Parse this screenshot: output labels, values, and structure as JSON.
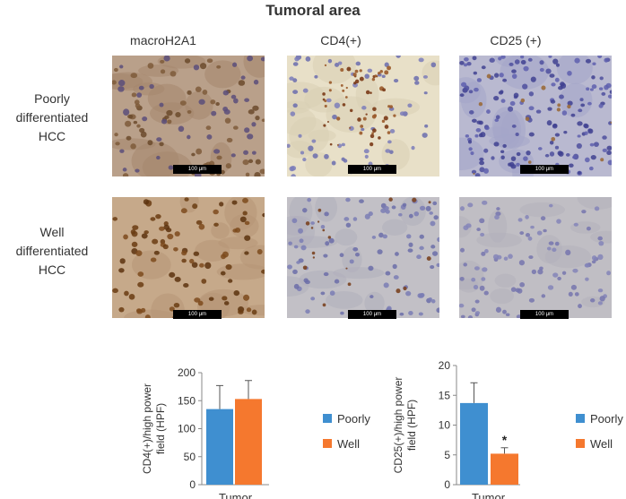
{
  "figure": {
    "title": "Tumoral area",
    "columns": [
      "macroH2A1",
      "CD4(+)",
      "CD25 (+)"
    ],
    "rows": [
      {
        "lines": [
          "Poorly",
          "differentiated",
          "HCC"
        ]
      },
      {
        "lines": [
          "Well",
          "differentiated",
          "HCC"
        ]
      }
    ],
    "scale_bar_label": "100 μm",
    "colors": {
      "hematoxylin": "#5a5aa8",
      "dab_brown": "#7a4a1e",
      "poorly": "#3f8fd0",
      "well": "#f5782e"
    }
  },
  "chart_data": [
    {
      "type": "bar",
      "categories": [
        "Tumor"
      ],
      "xlabel": "Tumor",
      "ylabel": "CD4(+)/high power field (HPF)",
      "ylim": [
        0,
        200
      ],
      "yticks": [
        0,
        50,
        100,
        150,
        200
      ],
      "series": [
        {
          "name": "Poorly",
          "values": [
            135
          ],
          "error": [
            42
          ],
          "color": "#3f8fd0"
        },
        {
          "name": "Well",
          "values": [
            153
          ],
          "error": [
            33
          ],
          "color": "#f5782e"
        }
      ],
      "annotations": [],
      "legend": "right"
    },
    {
      "type": "bar",
      "categories": [
        "Tumor"
      ],
      "xlabel": "Tumor",
      "ylabel": "CD25(+)/high power field (HPF)",
      "ylim": [
        0,
        20
      ],
      "yticks": [
        0,
        5,
        10,
        15,
        20
      ],
      "series": [
        {
          "name": "Poorly",
          "values": [
            13.7
          ],
          "error": [
            3.4
          ],
          "color": "#3f8fd0"
        },
        {
          "name": "Well",
          "values": [
            5.2
          ],
          "error": [
            1.0
          ],
          "color": "#f5782e"
        }
      ],
      "annotations": [
        "*"
      ],
      "legend": "right"
    }
  ]
}
